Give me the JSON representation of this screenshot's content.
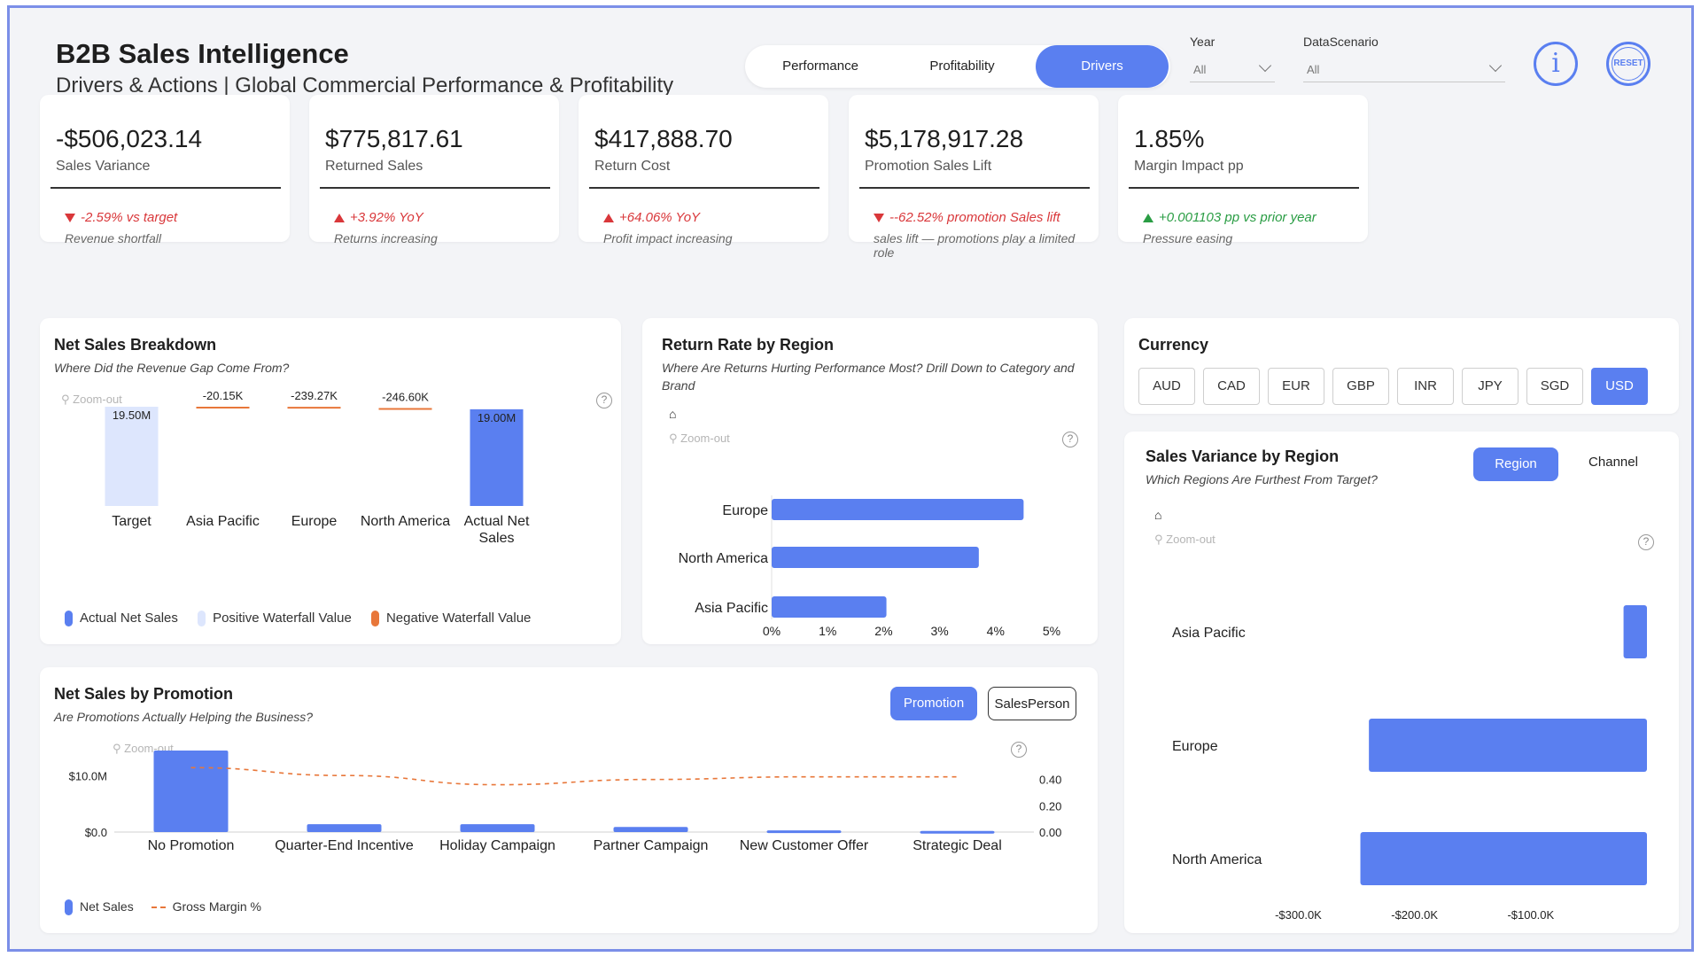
{
  "header": {
    "title": "B2B Sales Intelligence",
    "subtitle": "Drivers & Actions | Global Commercial Performance & Profitability"
  },
  "nav": {
    "tabs": [
      {
        "label": "Performance",
        "active": false
      },
      {
        "label": "Profitability",
        "active": false
      },
      {
        "label": "Drivers",
        "active": true
      }
    ]
  },
  "filters": {
    "year": {
      "label": "Year",
      "value": "All"
    },
    "scenario": {
      "label": "DataScenario",
      "value": "All"
    }
  },
  "icons": {
    "info": "info-icon",
    "reset": "RESET"
  },
  "colors": {
    "accent": "#5a7ff0",
    "light": "#dde6fd",
    "negative": "#e8773a",
    "red": "#d9373a",
    "green": "#2a9d44"
  },
  "kpis": [
    {
      "value": "-$506,023.14",
      "label": "Sales Variance",
      "delta": "-2.59% vs target",
      "note": "Revenue shortfall",
      "dir": "down",
      "tone": "red"
    },
    {
      "value": "$775,817.61",
      "label": "Returned Sales",
      "delta": "+3.92% YoY",
      "note": "Returns increasing",
      "dir": "up",
      "tone": "red"
    },
    {
      "value": "$417,888.70",
      "label": "Return Cost",
      "delta": "+64.06% YoY",
      "note": "Profit impact increasing",
      "dir": "up",
      "tone": "red"
    },
    {
      "value": "$5,178,917.28",
      "label": "Promotion Sales Lift",
      "delta": "--62.52% promotion Sales lift",
      "note": "sales lift — promotions play a limited role",
      "dir": "down",
      "tone": "red"
    },
    {
      "value": "1.85%",
      "label": "Margin Impact pp",
      "delta": "+0.001103 pp vs prior year",
      "note": "Pressure easing",
      "dir": "up",
      "tone": "green"
    }
  ],
  "common": {
    "zoom_out": "Zoom-out",
    "help": "?",
    "home": "⌂"
  },
  "waterfall": {
    "title": "Net Sales Breakdown",
    "subtitle": "Where Did the Revenue Gap Come From?",
    "legend": [
      "Actual Net Sales",
      "Positive Waterfall Value",
      "Negative Waterfall Value"
    ]
  },
  "return_rate": {
    "title": "Return Rate by Region",
    "subtitle": "Where Are Returns Hurting Performance Most? Drill Down to Category and Brand"
  },
  "currency": {
    "title": "Currency",
    "options": [
      "AUD",
      "CAD",
      "EUR",
      "GBP",
      "INR",
      "JPY",
      "SGD",
      "USD"
    ],
    "selected": "USD"
  },
  "variance": {
    "title": "Sales Variance by Region",
    "subtitle": "Which Regions Are Furthest From Target?",
    "toggle": [
      "Region",
      "Channel"
    ]
  },
  "promotion": {
    "title": "Net Sales by Promotion",
    "subtitle": "Are Promotions Actually Helping the Business?",
    "toggle": [
      "Promotion",
      "SalesPerson"
    ],
    "legend": [
      "Net Sales",
      "Gross Margin %"
    ]
  },
  "chart_data": [
    {
      "id": "waterfall",
      "type": "bar",
      "categories": [
        "Target",
        "Asia Pacific",
        "Europe",
        "North America",
        "Actual Net Sales"
      ],
      "values": [
        19.5,
        -0.02015,
        -0.23927,
        -0.2466,
        19.0
      ],
      "labels": [
        "19.50M",
        "-20.15K",
        "-239.27K",
        "-246.60K",
        "19.00M"
      ],
      "kinds": [
        "positive",
        "negative",
        "negative",
        "negative",
        "actual"
      ],
      "unit": "M"
    },
    {
      "id": "return_rate",
      "type": "bar",
      "orientation": "horizontal",
      "categories": [
        "Europe",
        "North America",
        "Asia Pacific"
      ],
      "values": [
        4.5,
        3.7,
        2.05
      ],
      "xlim": [
        0,
        5
      ],
      "xticks": [
        "0%",
        "1%",
        "2%",
        "3%",
        "4%",
        "5%"
      ]
    },
    {
      "id": "sales_variance",
      "type": "bar",
      "orientation": "horizontal",
      "categories": [
        "Asia Pacific",
        "Europe",
        "North America"
      ],
      "values": [
        -20.15,
        -239.27,
        -246.6
      ],
      "xlim": [
        -340,
        0
      ],
      "xticks": [
        {
          "v": -300,
          "label": "-$300.0K"
        },
        {
          "v": -200,
          "label": "-$200.0K"
        },
        {
          "v": -100,
          "label": "-$100.0K"
        }
      ]
    },
    {
      "id": "promotion",
      "type": "bar",
      "categories": [
        "No Promotion",
        "Quarter-End Incentive",
        "Holiday Campaign",
        "Partner Campaign",
        "New Customer Offer",
        "Strategic Deal"
      ],
      "series": [
        {
          "name": "Net Sales",
          "values": [
            14.5,
            1.4,
            1.4,
            0.9,
            0.3,
            0.2
          ]
        },
        {
          "name": "Gross Margin %",
          "values": [
            0.49,
            0.43,
            0.36,
            0.4,
            0.42,
            0.42
          ]
        }
      ],
      "yticks_left": [
        {
          "v": 0,
          "label": "$0.0"
        },
        {
          "v": 10,
          "label": "$10.0M"
        }
      ],
      "yticks_right": [
        {
          "v": 0,
          "label": "0.00"
        },
        {
          "v": 0.2,
          "label": "0.20"
        },
        {
          "v": 0.4,
          "label": "0.40"
        }
      ]
    }
  ]
}
